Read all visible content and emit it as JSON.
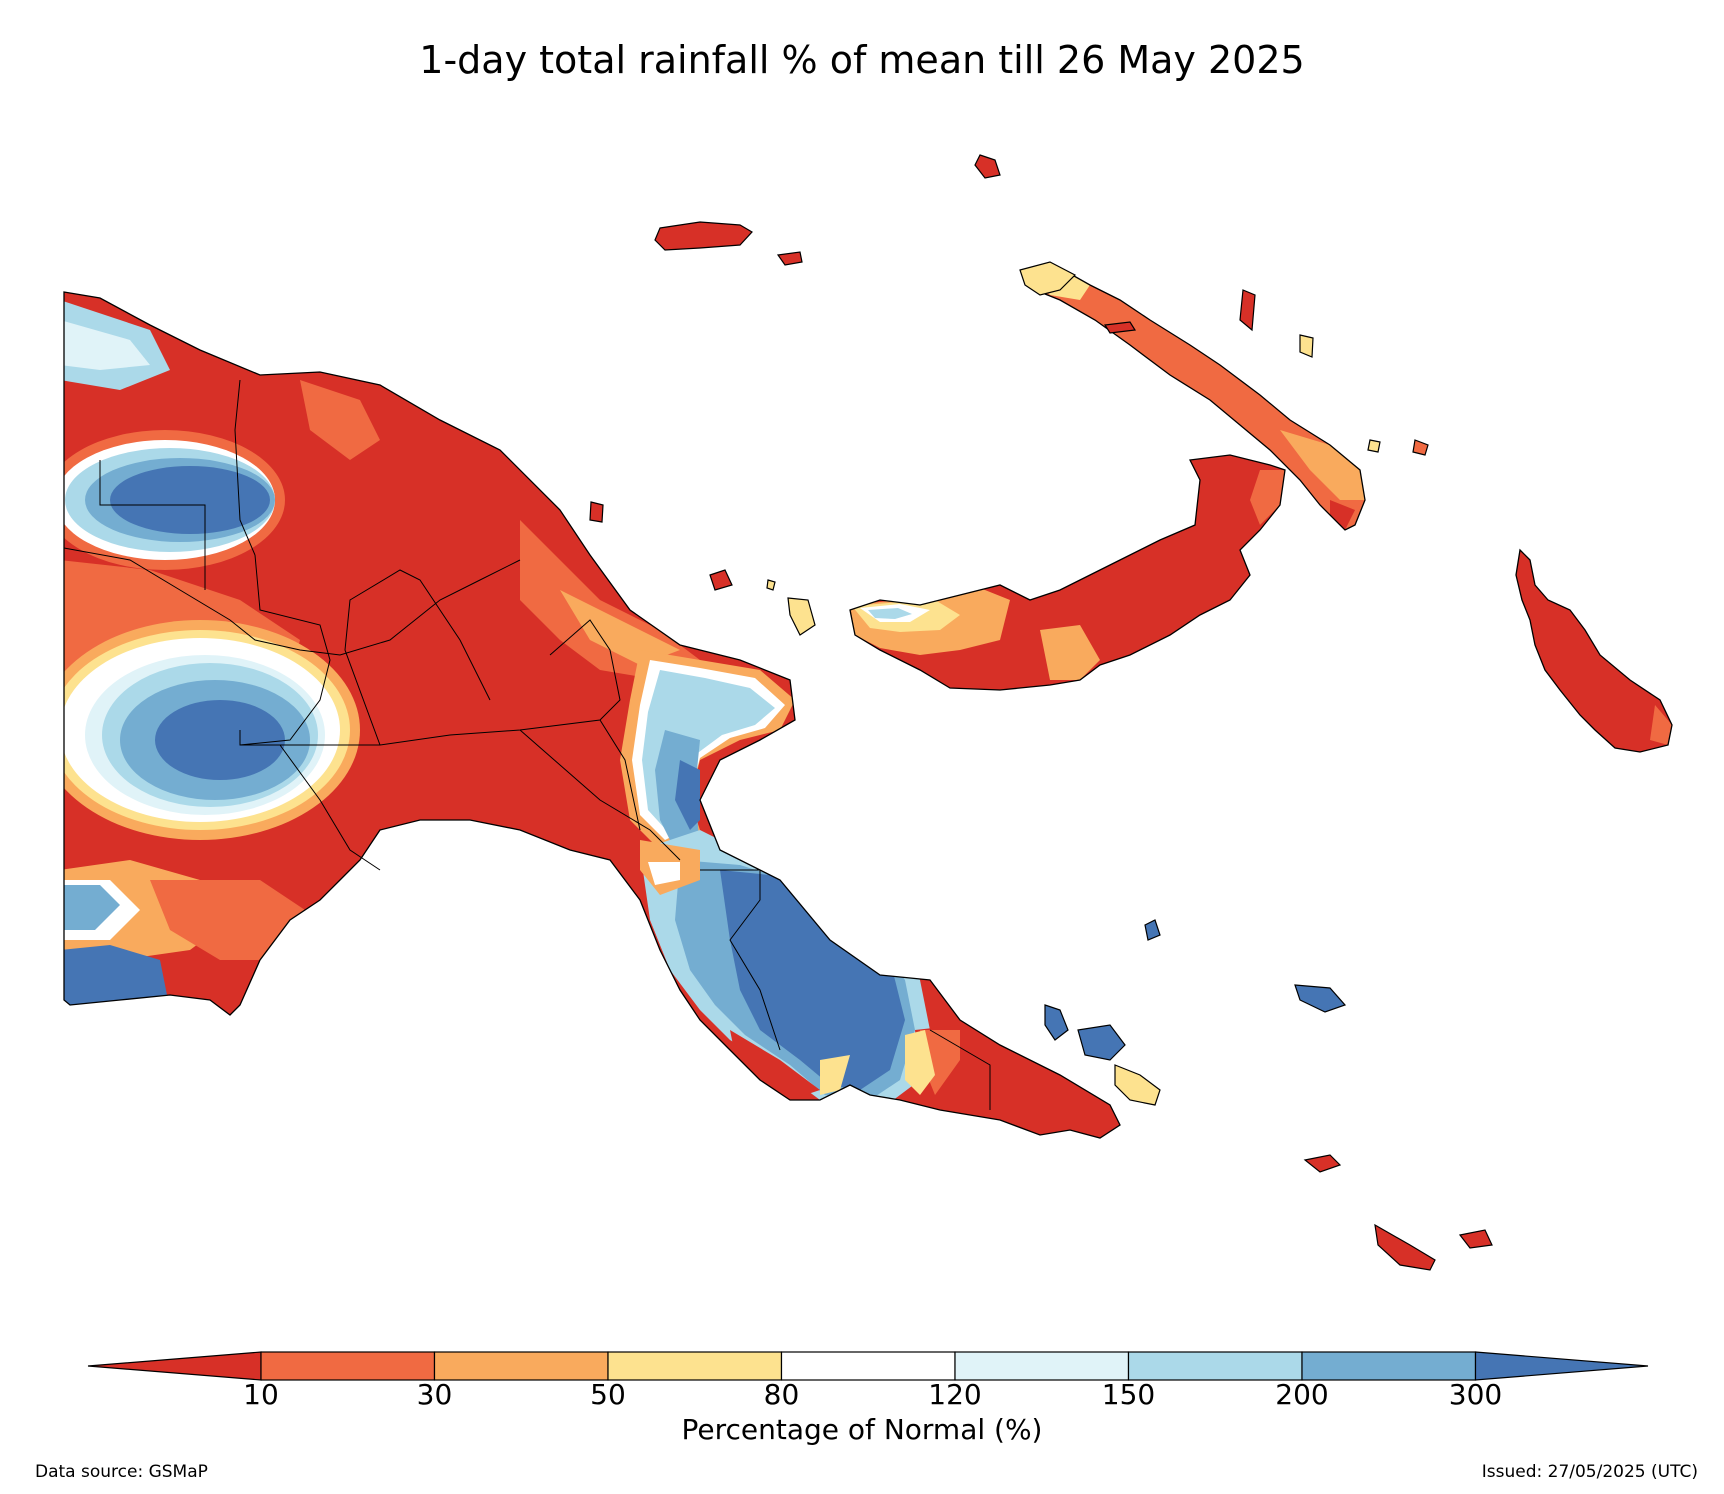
{
  "title": "1-day total rainfall % of mean till 26 May 2025",
  "map": {
    "region": "Papua New Guinea",
    "variable": "1-day total rainfall % of mean",
    "palette": {
      "lt10": "#d73027",
      "10-30": "#f06a42",
      "30-50": "#f9aa5d",
      "50-80": "#fde28f",
      "80-120": "#ffffff",
      "120-150": "#e0f3f8",
      "150-200": "#abd9e9",
      "200-300": "#74add1",
      "gt300": "#4575b4"
    }
  },
  "colorbar": {
    "ticks": [
      "10",
      "30",
      "50",
      "80",
      "120",
      "150",
      "200",
      "300"
    ],
    "colors": [
      "#d73027",
      "#f06a42",
      "#f9aa5d",
      "#fde28f",
      "#ffffff",
      "#e0f3f8",
      "#abd9e9",
      "#74add1",
      "#4575b4"
    ],
    "label": "Percentage of Normal (%)",
    "extend": "both"
  },
  "footer": {
    "source": "Data source: GSMaP",
    "issued": "Issued: 27/05/2025 (UTC)"
  }
}
